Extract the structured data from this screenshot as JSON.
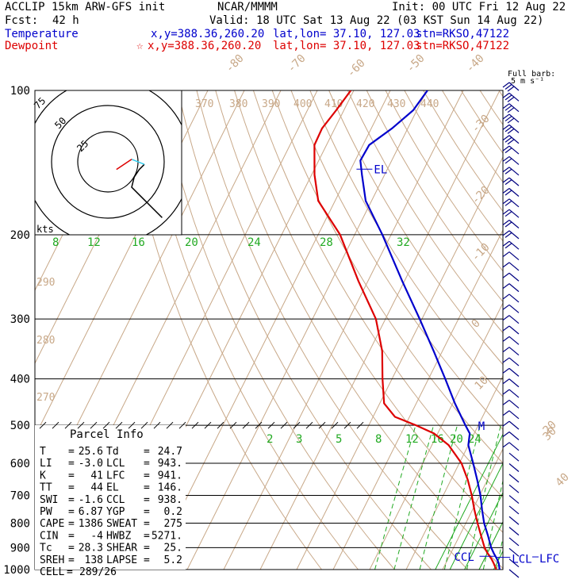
{
  "header": {
    "model": "ACCLIP 15km ARW-GFS init",
    "source": "NCAR/MMMM",
    "init": "Init: 00 UTC Fri 12 Aug 22",
    "fcst_label": "Fcst:",
    "fcst_value": "42 h",
    "valid": "Valid: 18 UTC Sat 13 Aug 22 (03 KST Sun 14 Aug 22)",
    "temp_label": "Temperature",
    "temp_loc": "x,y=388.36,260.20",
    "temp_latlon": "lat,lon= 37.10, 127.03",
    "temp_stn": "stn=RKSO,47122",
    "dew_label": "Dewpoint",
    "dew_marker": "☆",
    "dew_loc": "x,y=388.36,260.20",
    "dew_latlon": "lat,lon= 37.10, 127.03",
    "dew_stn": "stn=RKSO,47122"
  },
  "barb_header": {
    "line1": "Full barb:",
    "line2": "5 m s⁻¹"
  },
  "colors": {
    "temperature": "#0000cc",
    "dewpoint": "#dd0000",
    "adiabat": "#c8a888",
    "moist": "#22aa22",
    "mixing": "#22aa22",
    "grid": "#000000"
  },
  "chart_data": {
    "type": "line",
    "subtype": "skew-T log-p",
    "pressure_levels": [
      100,
      200,
      300,
      400,
      500,
      600,
      700,
      800,
      900,
      1000
    ],
    "pressure_tick_labels": [
      "100",
      "200",
      "300",
      "400",
      "500",
      "600",
      "700",
      "800",
      "900",
      "1000"
    ],
    "skewed_temperature_labels": [
      "-80",
      "-70",
      "-60",
      "-50",
      "-40",
      "-30",
      "-20",
      "-10",
      "0",
      "10",
      "20",
      "30",
      "40"
    ],
    "theta_labels": [
      "370",
      "380",
      "390",
      "400",
      "410",
      "420",
      "430",
      "440",
      "290",
      "280",
      "270"
    ],
    "moist_adiabat_labels": [
      "8",
      "12",
      "16",
      "20",
      "24",
      "28",
      "32"
    ],
    "mixing_ratio_labels": [
      "2",
      "3",
      "5",
      "8",
      "12",
      "16",
      "20",
      "24"
    ],
    "series": [
      {
        "name": "Temperature",
        "points": [
          [
            1000,
            25.6
          ],
          [
            970,
            24.5
          ],
          [
            950,
            23.4
          ],
          [
            925,
            21.8
          ],
          [
            900,
            20.3
          ],
          [
            850,
            17.8
          ],
          [
            800,
            15.0
          ],
          [
            750,
            12.6
          ],
          [
            700,
            10.2
          ],
          [
            650,
            7.2
          ],
          [
            600,
            3.8
          ],
          [
            550,
            0.0
          ],
          [
            520,
            -1.2
          ],
          [
            500,
            -3.5
          ],
          [
            480,
            -5.8
          ],
          [
            450,
            -9.4
          ],
          [
            400,
            -15.4
          ],
          [
            350,
            -22.4
          ],
          [
            300,
            -30.6
          ],
          [
            250,
            -40.6
          ],
          [
            200,
            -52.4
          ],
          [
            170,
            -61.6
          ],
          [
            150,
            -66.2
          ],
          [
            140,
            -68.6
          ],
          [
            130,
            -68.3
          ],
          [
            120,
            -64.3
          ],
          [
            110,
            -61.0
          ],
          [
            100,
            -59.8
          ]
        ]
      },
      {
        "name": "Dewpoint",
        "points": [
          [
            1000,
            24.7
          ],
          [
            970,
            23.1
          ],
          [
            950,
            21.9
          ],
          [
            925,
            20.1
          ],
          [
            900,
            18.5
          ],
          [
            850,
            15.9
          ],
          [
            800,
            13.2
          ],
          [
            750,
            10.5
          ],
          [
            700,
            7.8
          ],
          [
            650,
            4.6
          ],
          [
            600,
            0.6
          ],
          [
            550,
            -5.4
          ],
          [
            520,
            -11.0
          ],
          [
            500,
            -17.0
          ],
          [
            480,
            -24.0
          ],
          [
            450,
            -28.8
          ],
          [
            400,
            -32.6
          ],
          [
            350,
            -36.5
          ],
          [
            300,
            -42.6
          ],
          [
            250,
            -52.6
          ],
          [
            200,
            -64.0
          ],
          [
            170,
            -74.6
          ],
          [
            150,
            -79.2
          ],
          [
            130,
            -83.3
          ],
          [
            120,
            -83.5
          ],
          [
            110,
            -82.1
          ],
          [
            100,
            -80.8
          ]
        ]
      }
    ],
    "annotations": [
      {
        "text": "EL",
        "pressure": 146,
        "color": "#0000cc"
      },
      {
        "text": "M",
        "pressure": 500,
        "color": "#0000cc"
      },
      {
        "text": "CCL",
        "pressure": 938,
        "color": "#0000cc"
      },
      {
        "text": "LCL",
        "pressure": 943,
        "color": "#0000cc"
      },
      {
        "text": "LFC",
        "pressure": 941,
        "color": "#0000cc"
      }
    ],
    "hodograph": {
      "units_label": "kts",
      "ring_labels": [
        "25",
        "50",
        "75"
      ],
      "red_segment": [
        [
          -6,
          -3
        ],
        [
          0,
          1
        ]
      ],
      "cyan_segment": [
        [
          0,
          1
        ],
        [
          5,
          -1
        ]
      ],
      "black_path": [
        [
          5,
          -1
        ],
        [
          3,
          -3
        ],
        [
          1,
          -6
        ],
        [
          0,
          -10
        ],
        [
          4,
          -14
        ],
        [
          8,
          -18
        ],
        [
          12,
          -22
        ]
      ]
    },
    "wind_barbs_m_s": [
      18,
      18,
      16,
      16,
      15,
      15,
      14,
      14,
      13,
      12,
      12,
      11,
      11,
      10,
      10,
      10,
      9,
      9,
      9,
      8,
      8,
      8,
      8,
      7,
      7,
      7,
      7,
      7,
      6,
      6,
      6,
      5,
      5,
      5,
      5,
      4,
      4,
      4,
      4,
      4,
      3,
      3,
      3,
      2,
      2,
      2,
      2
    ],
    "parcel_info": {
      "title": "Parcel Info",
      "rows": [
        [
          "T",
          "25.6",
          "Td",
          "24.7"
        ],
        [
          "LI",
          "-3.0",
          "LCL",
          "943."
        ],
        [
          "K",
          "41",
          "LFC",
          "941."
        ],
        [
          "TT",
          "44",
          "EL",
          "146."
        ],
        [
          "SWI",
          "-1.6",
          "CCL",
          "938."
        ],
        [
          "PW",
          "6.87",
          "YGP",
          "0.2"
        ],
        [
          "CAPE",
          "1386",
          "SWEAT",
          "275"
        ],
        [
          "CIN",
          "-4",
          "HWBZ",
          "5271."
        ],
        [
          "Tc",
          "28.3",
          "SHEAR",
          "25."
        ],
        [
          "SREH",
          "138",
          "LAPSE",
          "5.2"
        ],
        [
          "CELL",
          "289/26",
          "",
          ""
        ]
      ]
    }
  }
}
